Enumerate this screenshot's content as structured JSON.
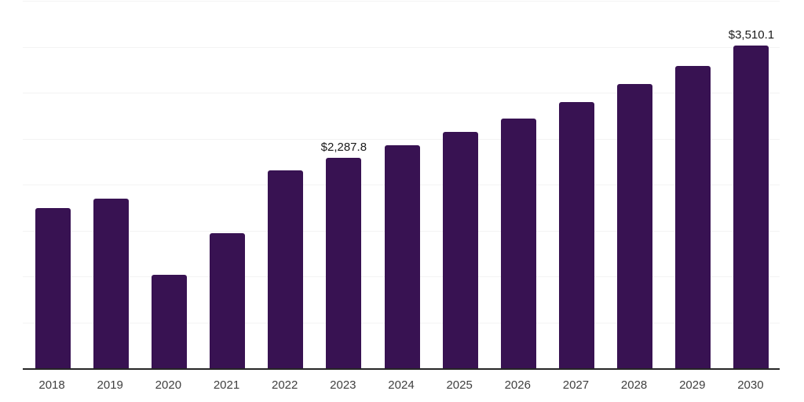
{
  "chart": {
    "background_color": "#ffffff",
    "bar_color": "#381252",
    "gridline_color": "#f3f3f3",
    "axis_line_color": "#262626",
    "axis_label_color": "#404040",
    "data_label_color": "#1a1a1a"
  },
  "chart_data": {
    "type": "bar",
    "title": "",
    "xlabel": "",
    "ylabel": "",
    "categories": [
      "2018",
      "2019",
      "2020",
      "2021",
      "2022",
      "2023",
      "2024",
      "2025",
      "2026",
      "2027",
      "2028",
      "2029",
      "2030"
    ],
    "values": [
      1745,
      1845,
      1020,
      1470,
      2155,
      2287.8,
      2425,
      2570,
      2720,
      2900,
      3090,
      3295,
      3510.1
    ],
    "point_labels": [
      "",
      "",
      "",
      "",
      "",
      "$2,287.8",
      "",
      "",
      "",
      "",
      "",
      "",
      "$3,510.1"
    ],
    "ylim": [
      0,
      4000
    ],
    "gridline_step": 500,
    "grid": true,
    "legend": false
  }
}
